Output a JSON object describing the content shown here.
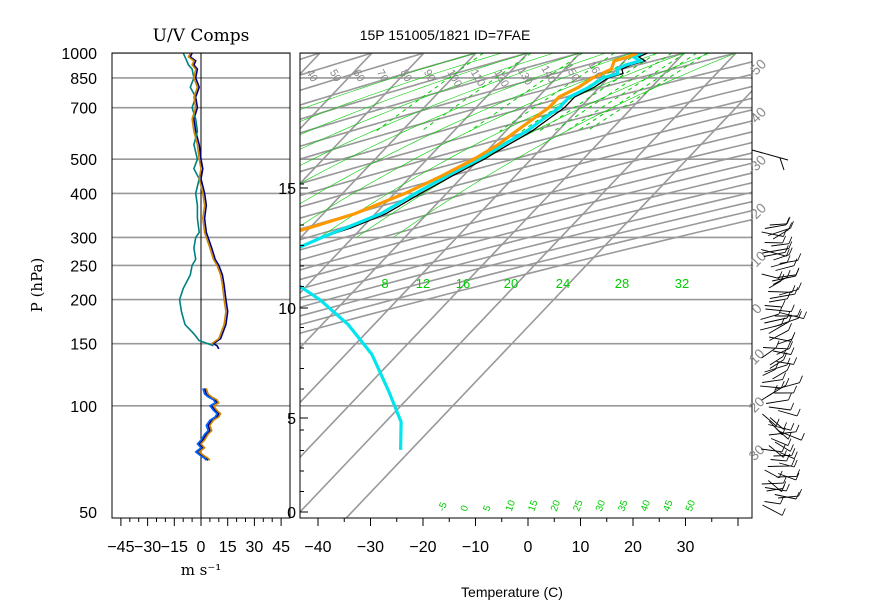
{
  "chart_data": [
    {
      "type": "line",
      "title": "U/V Comps",
      "xlabel": "m s⁻¹",
      "ylabel": "P (hPa)",
      "xlim": [
        -50,
        50
      ],
      "x_ticks": [
        "−45",
        "−30",
        "−15",
        "0",
        "15",
        "30",
        "45"
      ],
      "y_ticks": [
        50,
        100,
        150,
        200,
        250,
        300,
        400,
        500,
        700,
        850,
        1000
      ],
      "y_scale": "log-pressure",
      "grid": true,
      "series": [
        {
          "color": "#000080",
          "points": [
            [
              -5,
              1000
            ],
            [
              -6,
              975
            ],
            [
              -3,
              950
            ],
            [
              -4,
              925
            ],
            [
              -2,
              900
            ],
            [
              -3,
              850
            ],
            [
              -1,
              800
            ],
            [
              -3,
              750
            ],
            [
              -2,
              700
            ],
            [
              -4,
              650
            ],
            [
              -3,
              600
            ],
            [
              -1,
              550
            ],
            [
              0,
              500
            ],
            [
              1,
              470
            ],
            [
              0,
              440
            ],
            [
              2,
              400
            ],
            [
              3,
              370
            ],
            [
              2,
              340
            ],
            [
              3,
              310
            ],
            [
              4,
              300
            ],
            [
              6,
              280
            ],
            [
              8,
              260
            ],
            [
              10,
              250
            ],
            [
              12,
              235
            ],
            [
              13,
              220
            ],
            [
              14,
              200
            ],
            [
              15,
              185
            ],
            [
              14,
              170
            ],
            [
              11,
              155
            ],
            [
              7,
              150
            ],
            [
              9,
              148
            ],
            [
              10,
              145
            ]
          ]
        },
        {
          "color": "#008080",
          "points": [
            [
              -10,
              1000
            ],
            [
              -9,
              975
            ],
            [
              -8,
              950
            ],
            [
              -7,
              925
            ],
            [
              -5,
              900
            ],
            [
              -4,
              850
            ],
            [
              -6,
              800
            ],
            [
              -3,
              750
            ],
            [
              -5,
              700
            ],
            [
              -3,
              650
            ],
            [
              -2,
              600
            ],
            [
              -4,
              550
            ],
            [
              -2,
              500
            ],
            [
              -4,
              470
            ],
            [
              -1,
              440
            ],
            [
              -3,
              400
            ],
            [
              -2,
              370
            ],
            [
              -2,
              340
            ],
            [
              -1,
              310
            ],
            [
              -3,
              300
            ],
            [
              -4,
              280
            ],
            [
              -3,
              260
            ],
            [
              -5,
              250
            ],
            [
              -6,
              235
            ],
            [
              -10,
              215
            ],
            [
              -12,
              200
            ],
            [
              -11,
              185
            ],
            [
              -9,
              170
            ],
            [
              -4,
              160
            ],
            [
              -1,
              153
            ],
            [
              4,
              150
            ],
            [
              7,
              148
            ]
          ]
        },
        {
          "color": "#cc8800",
          "points": [
            [
              -6,
              1000
            ],
            [
              -7,
              975
            ],
            [
              -4,
              950
            ],
            [
              -5,
              925
            ],
            [
              -3,
              900
            ],
            [
              -4,
              850
            ],
            [
              -2,
              800
            ],
            [
              -4,
              750
            ],
            [
              -3,
              700
            ],
            [
              -5,
              650
            ],
            [
              -4,
              600
            ],
            [
              -2,
              550
            ],
            [
              -1,
              500
            ],
            [
              0,
              470
            ],
            [
              -1,
              440
            ],
            [
              1,
              400
            ],
            [
              2,
              370
            ],
            [
              1,
              340
            ],
            [
              2,
              310
            ],
            [
              3,
              300
            ],
            [
              5,
              280
            ],
            [
              7,
              260
            ],
            [
              9,
              250
            ],
            [
              11,
              235
            ],
            [
              12,
              220
            ],
            [
              13,
              200
            ],
            [
              14,
              185
            ],
            [
              13,
              170
            ],
            [
              10,
              155
            ],
            [
              6,
              150
            ]
          ]
        },
        {
          "color": "#000080",
          "points": [
            [
              2,
              112
            ],
            [
              3,
              108
            ],
            [
              5,
              106
            ],
            [
              8,
              104
            ],
            [
              9,
              102
            ],
            [
              6,
              100
            ],
            [
              8,
              97
            ],
            [
              10,
              95
            ],
            [
              9,
              93
            ],
            [
              6,
              91
            ],
            [
              4,
              88
            ],
            [
              5,
              85
            ],
            [
              3,
              83
            ],
            [
              1,
              80
            ],
            [
              -1,
              78
            ],
            [
              1,
              76
            ],
            [
              -2,
              74
            ],
            [
              1,
              72
            ],
            [
              3,
              71
            ],
            [
              4,
              70
            ]
          ]
        },
        {
          "color": "#cc8800",
          "points": [
            [
              3,
              112
            ],
            [
              4,
              108
            ],
            [
              6,
              106
            ],
            [
              9,
              104
            ],
            [
              10,
              102
            ],
            [
              7,
              100
            ],
            [
              9,
              97
            ],
            [
              11,
              95
            ],
            [
              10,
              93
            ],
            [
              7,
              91
            ],
            [
              5,
              88
            ],
            [
              6,
              85
            ],
            [
              4,
              83
            ],
            [
              2,
              80
            ],
            [
              0,
              78
            ],
            [
              2,
              76
            ],
            [
              -1,
              74
            ],
            [
              2,
              72
            ],
            [
              4,
              71
            ],
            [
              5,
              70
            ]
          ]
        },
        {
          "color": "#0066ff",
          "points": [
            [
              1,
              112
            ],
            [
              2,
              108
            ],
            [
              4,
              106
            ],
            [
              7,
              104
            ],
            [
              8,
              102
            ],
            [
              5,
              100
            ],
            [
              7,
              97
            ],
            [
              9,
              95
            ],
            [
              8,
              93
            ],
            [
              5,
              91
            ],
            [
              3,
              88
            ],
            [
              4,
              85
            ],
            [
              2,
              83
            ],
            [
              0,
              80
            ],
            [
              -2,
              78
            ],
            [
              0,
              76
            ],
            [
              -3,
              74
            ],
            [
              0,
              72
            ],
            [
              2,
              71
            ],
            [
              3,
              70
            ]
          ]
        }
      ]
    },
    {
      "type": "line",
      "title": "15P 151005/1821 ID=7FAE",
      "xlabel": "Temperature (C)",
      "ylabel": "",
      "xlim": [
        -40,
        40
      ],
      "x_ticks": [
        "−40",
        "−30",
        "−20",
        "−10",
        "0",
        "10",
        "20",
        "30"
      ],
      "height_ticks_km": [
        "0",
        "5",
        "10",
        "15"
      ],
      "y_scale": "log-pressure",
      "grid": true,
      "isotherm_labels": [
        "-50",
        "-40",
        "-30",
        "-20",
        "-10",
        "0",
        "10",
        "20",
        "30"
      ],
      "dry_adiabat_labels": [
        "40",
        "50",
        "60",
        "70",
        "80",
        "90",
        "100",
        "110",
        "120",
        "130",
        "140",
        "150",
        "160"
      ],
      "mixing_ratio_labels": [
        "8",
        "12",
        "16",
        "20",
        "24",
        "28",
        "32"
      ],
      "moist_adiabat_labels": [
        "-5",
        "0",
        "5",
        "10",
        "15",
        "20",
        "25",
        "30",
        "35",
        "40",
        "45",
        "50"
      ],
      "series": [
        {
          "color": "#000000",
          "points": [
            [
              23,
              1000
            ],
            [
              22,
              975
            ],
            [
              24,
              950
            ],
            [
              22,
              925
            ],
            [
              21,
              900
            ],
            [
              22,
              875
            ],
            [
              20,
              850
            ],
            [
              19,
              800
            ],
            [
              17,
              750
            ],
            [
              17,
              700
            ],
            [
              16,
              650
            ],
            [
              15,
              600
            ],
            [
              13,
              550
            ],
            [
              11,
              500
            ],
            [
              8,
              450
            ],
            [
              5,
              400
            ],
            [
              2,
              350
            ],
            [
              -2,
              320
            ],
            [
              -6,
              300
            ],
            [
              -11,
              270
            ],
            [
              -15,
              250
            ],
            [
              -19,
              230
            ],
            [
              -21,
              215
            ],
            [
              -23,
              200
            ],
            [
              -24,
              190
            ],
            [
              -23,
              180
            ],
            [
              -24,
              170
            ],
            [
              -26,
              160
            ],
            [
              -28,
              150
            ],
            [
              -30,
              140
            ],
            [
              -32,
              130
            ],
            [
              -35,
              120
            ],
            [
              -39,
              110
            ],
            [
              -45,
              100
            ],
            [
              -53,
              90
            ],
            [
              -55,
              85
            ],
            [
              -60,
              80
            ],
            [
              -67,
              75
            ],
            [
              -70,
              72
            ],
            [
              -71,
              70
            ]
          ]
        },
        {
          "color": "#00e5ee",
          "points": [
            [
              22,
              1000
            ],
            [
              21,
              975
            ],
            [
              23,
              950
            ],
            [
              21,
              925
            ],
            [
              20,
              900
            ],
            [
              21,
              875
            ],
            [
              19,
              850
            ],
            [
              18,
              800
            ],
            [
              16,
              750
            ],
            [
              16,
              700
            ],
            [
              15,
              650
            ],
            [
              14,
              600
            ],
            [
              12,
              550
            ],
            [
              10,
              500
            ],
            [
              7,
              450
            ],
            [
              4,
              400
            ],
            [
              1,
              350
            ],
            [
              -3,
              320
            ],
            [
              -6,
              300
            ],
            [
              -10,
              270
            ],
            [
              -11,
              250
            ],
            [
              -5,
              230
            ],
            [
              5,
              200
            ],
            [
              15,
              170
            ],
            [
              25,
              140
            ],
            [
              35,
              110
            ],
            [
              43,
              90
            ],
            [
              48,
              75
            ]
          ]
        },
        {
          "color": "#ff9900",
          "points": [
            [
              21,
              1000
            ],
            [
              20,
              975
            ],
            [
              18,
              950
            ],
            [
              19,
              900
            ],
            [
              18,
              875
            ],
            [
              17,
              850
            ],
            [
              16,
              800
            ],
            [
              14,
              750
            ],
            [
              14,
              700
            ],
            [
              13,
              650
            ],
            [
              12,
              600
            ],
            [
              11,
              550
            ],
            [
              9,
              500
            ],
            [
              6,
              450
            ],
            [
              2,
              400
            ],
            [
              -4,
              350
            ],
            [
              -10,
              320
            ],
            [
              -15,
              300
            ],
            [
              -22,
              280
            ],
            [
              -28,
              260
            ],
            [
              -33,
              245
            ],
            [
              -40,
              235
            ],
            [
              -55,
              220
            ],
            [
              -63,
              212
            ]
          ]
        }
      ]
    }
  ],
  "colors": {
    "grid": "#999999",
    "frame": "#000000",
    "mixing_ratio": "#00cc00",
    "background": "#ffffff"
  }
}
